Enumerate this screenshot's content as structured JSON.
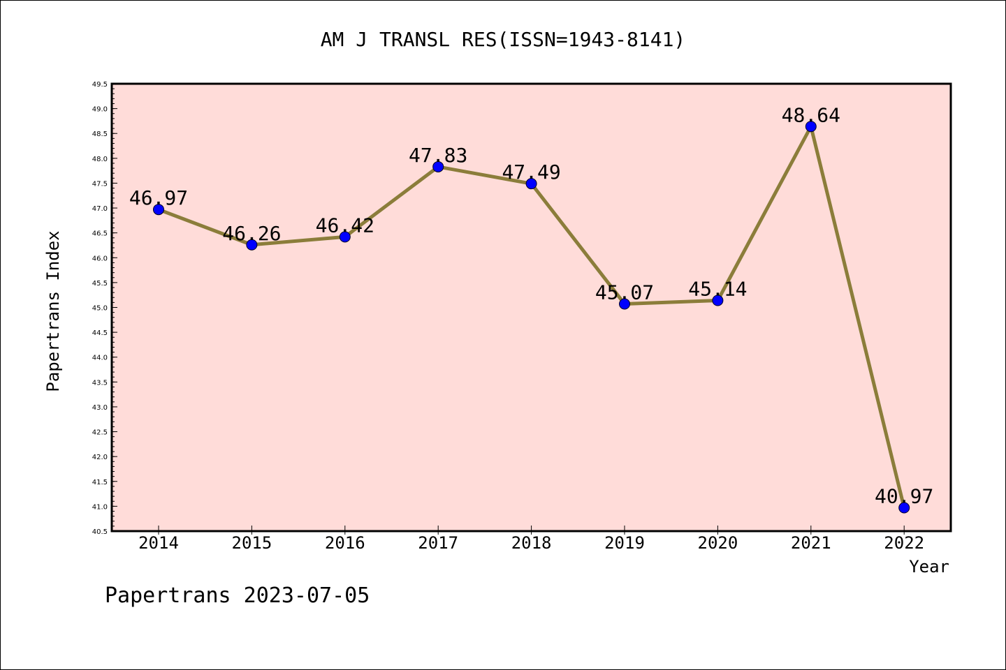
{
  "chart_data": {
    "type": "line",
    "title": "AM J TRANSL RES(ISSN=1943-8141)",
    "xlabel": "Year",
    "ylabel": "Papertrans Index",
    "categories": [
      "2014",
      "2015",
      "2016",
      "2017",
      "2018",
      "2019",
      "2020",
      "2021",
      "2022"
    ],
    "series": [
      {
        "values": [
          46.97,
          46.26,
          46.42,
          47.83,
          47.49,
          45.07,
          45.14,
          48.64,
          40.97
        ]
      }
    ],
    "data_labels": [
      "46.97",
      "46.26",
      "46.42",
      "47.83",
      "47.49",
      "45.07",
      "45.14",
      "48.64",
      "40.97"
    ],
    "ylim": [
      40.5,
      49.5
    ],
    "y_ticks": [
      "40.5",
      "41.0",
      "41.5",
      "42.0",
      "42.5",
      "43.0",
      "43.5",
      "44.0",
      "44.5",
      "45.0",
      "45.5",
      "46.0",
      "46.5",
      "47.0",
      "47.5",
      "48.0",
      "48.5",
      "49.0",
      "49.5"
    ],
    "grid": false,
    "legend": "none",
    "colors": {
      "plot_background": "#ffdcd9",
      "line": "#8b7d3a",
      "marker": "#0000ff"
    }
  },
  "footer": {
    "watermark": "Papertrans 2023-07-05"
  }
}
